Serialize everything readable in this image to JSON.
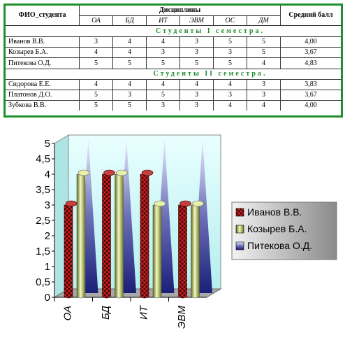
{
  "table": {
    "name_header": "ФИО_студента",
    "disciplines_header": "Дисциплины",
    "avg_header": "Средний балл",
    "subjects": [
      "ОА",
      "БД",
      "ИТ",
      "ЭВМ",
      "ОС",
      "ДМ"
    ],
    "semester1_label": "Студенты I семестра.",
    "semester2_label": "Студенты II семестра.",
    "semester1_rows": [
      {
        "name": "Иванов В.В.",
        "grades": [
          "3",
          "4",
          "4",
          "3",
          "5",
          "5"
        ],
        "avg": "4,00"
      },
      {
        "name": "Козырев Б.А.",
        "grades": [
          "4",
          "4",
          "3",
          "3",
          "3",
          "5"
        ],
        "avg": "3,67"
      },
      {
        "name": "Питекова О.Д.",
        "grades": [
          "5",
          "5",
          "5",
          "5",
          "5",
          "4"
        ],
        "avg": "4,83"
      }
    ],
    "semester2_rows": [
      {
        "name": "Сидорова Е.Е.",
        "grades": [
          "4",
          "4",
          "4",
          "4",
          "4",
          "3"
        ],
        "avg": "3,83"
      },
      {
        "name": "Платонов Д.О.",
        "grades": [
          "5",
          "3",
          "5",
          "3",
          "3",
          "3"
        ],
        "avg": "3,67"
      },
      {
        "name": "Зубкова В.В.",
        "grades": [
          "5",
          "5",
          "3",
          "3",
          "4",
          "4"
        ],
        "avg": "4,00"
      }
    ]
  },
  "chart_data": {
    "type": "bar",
    "categories": [
      "ОА",
      "БД",
      "ИТ",
      "ЭВМ"
    ],
    "series": [
      {
        "name": "Иванов В.В.",
        "values": [
          3,
          4,
          4,
          3
        ],
        "shape": "cylinder",
        "color": "#8a1a1a"
      },
      {
        "name": "Козырев Б.А.",
        "values": [
          4,
          4,
          3,
          3
        ],
        "shape": "cylinder",
        "color": "#c8d878"
      },
      {
        "name": "Питекова О.Д.",
        "values": [
          5,
          5,
          5,
          5
        ],
        "shape": "cone",
        "color": "#3a3f9a"
      }
    ],
    "yticks": [
      "0",
      "0,5",
      "1",
      "1,5",
      "2",
      "2,5",
      "3",
      "3,5",
      "4",
      "4,5",
      "5"
    ],
    "ylim": [
      0,
      5
    ],
    "legend_position": "right",
    "grid": false,
    "wall_color": "#c9f6f6",
    "floor_color": "#a9a9a9"
  }
}
